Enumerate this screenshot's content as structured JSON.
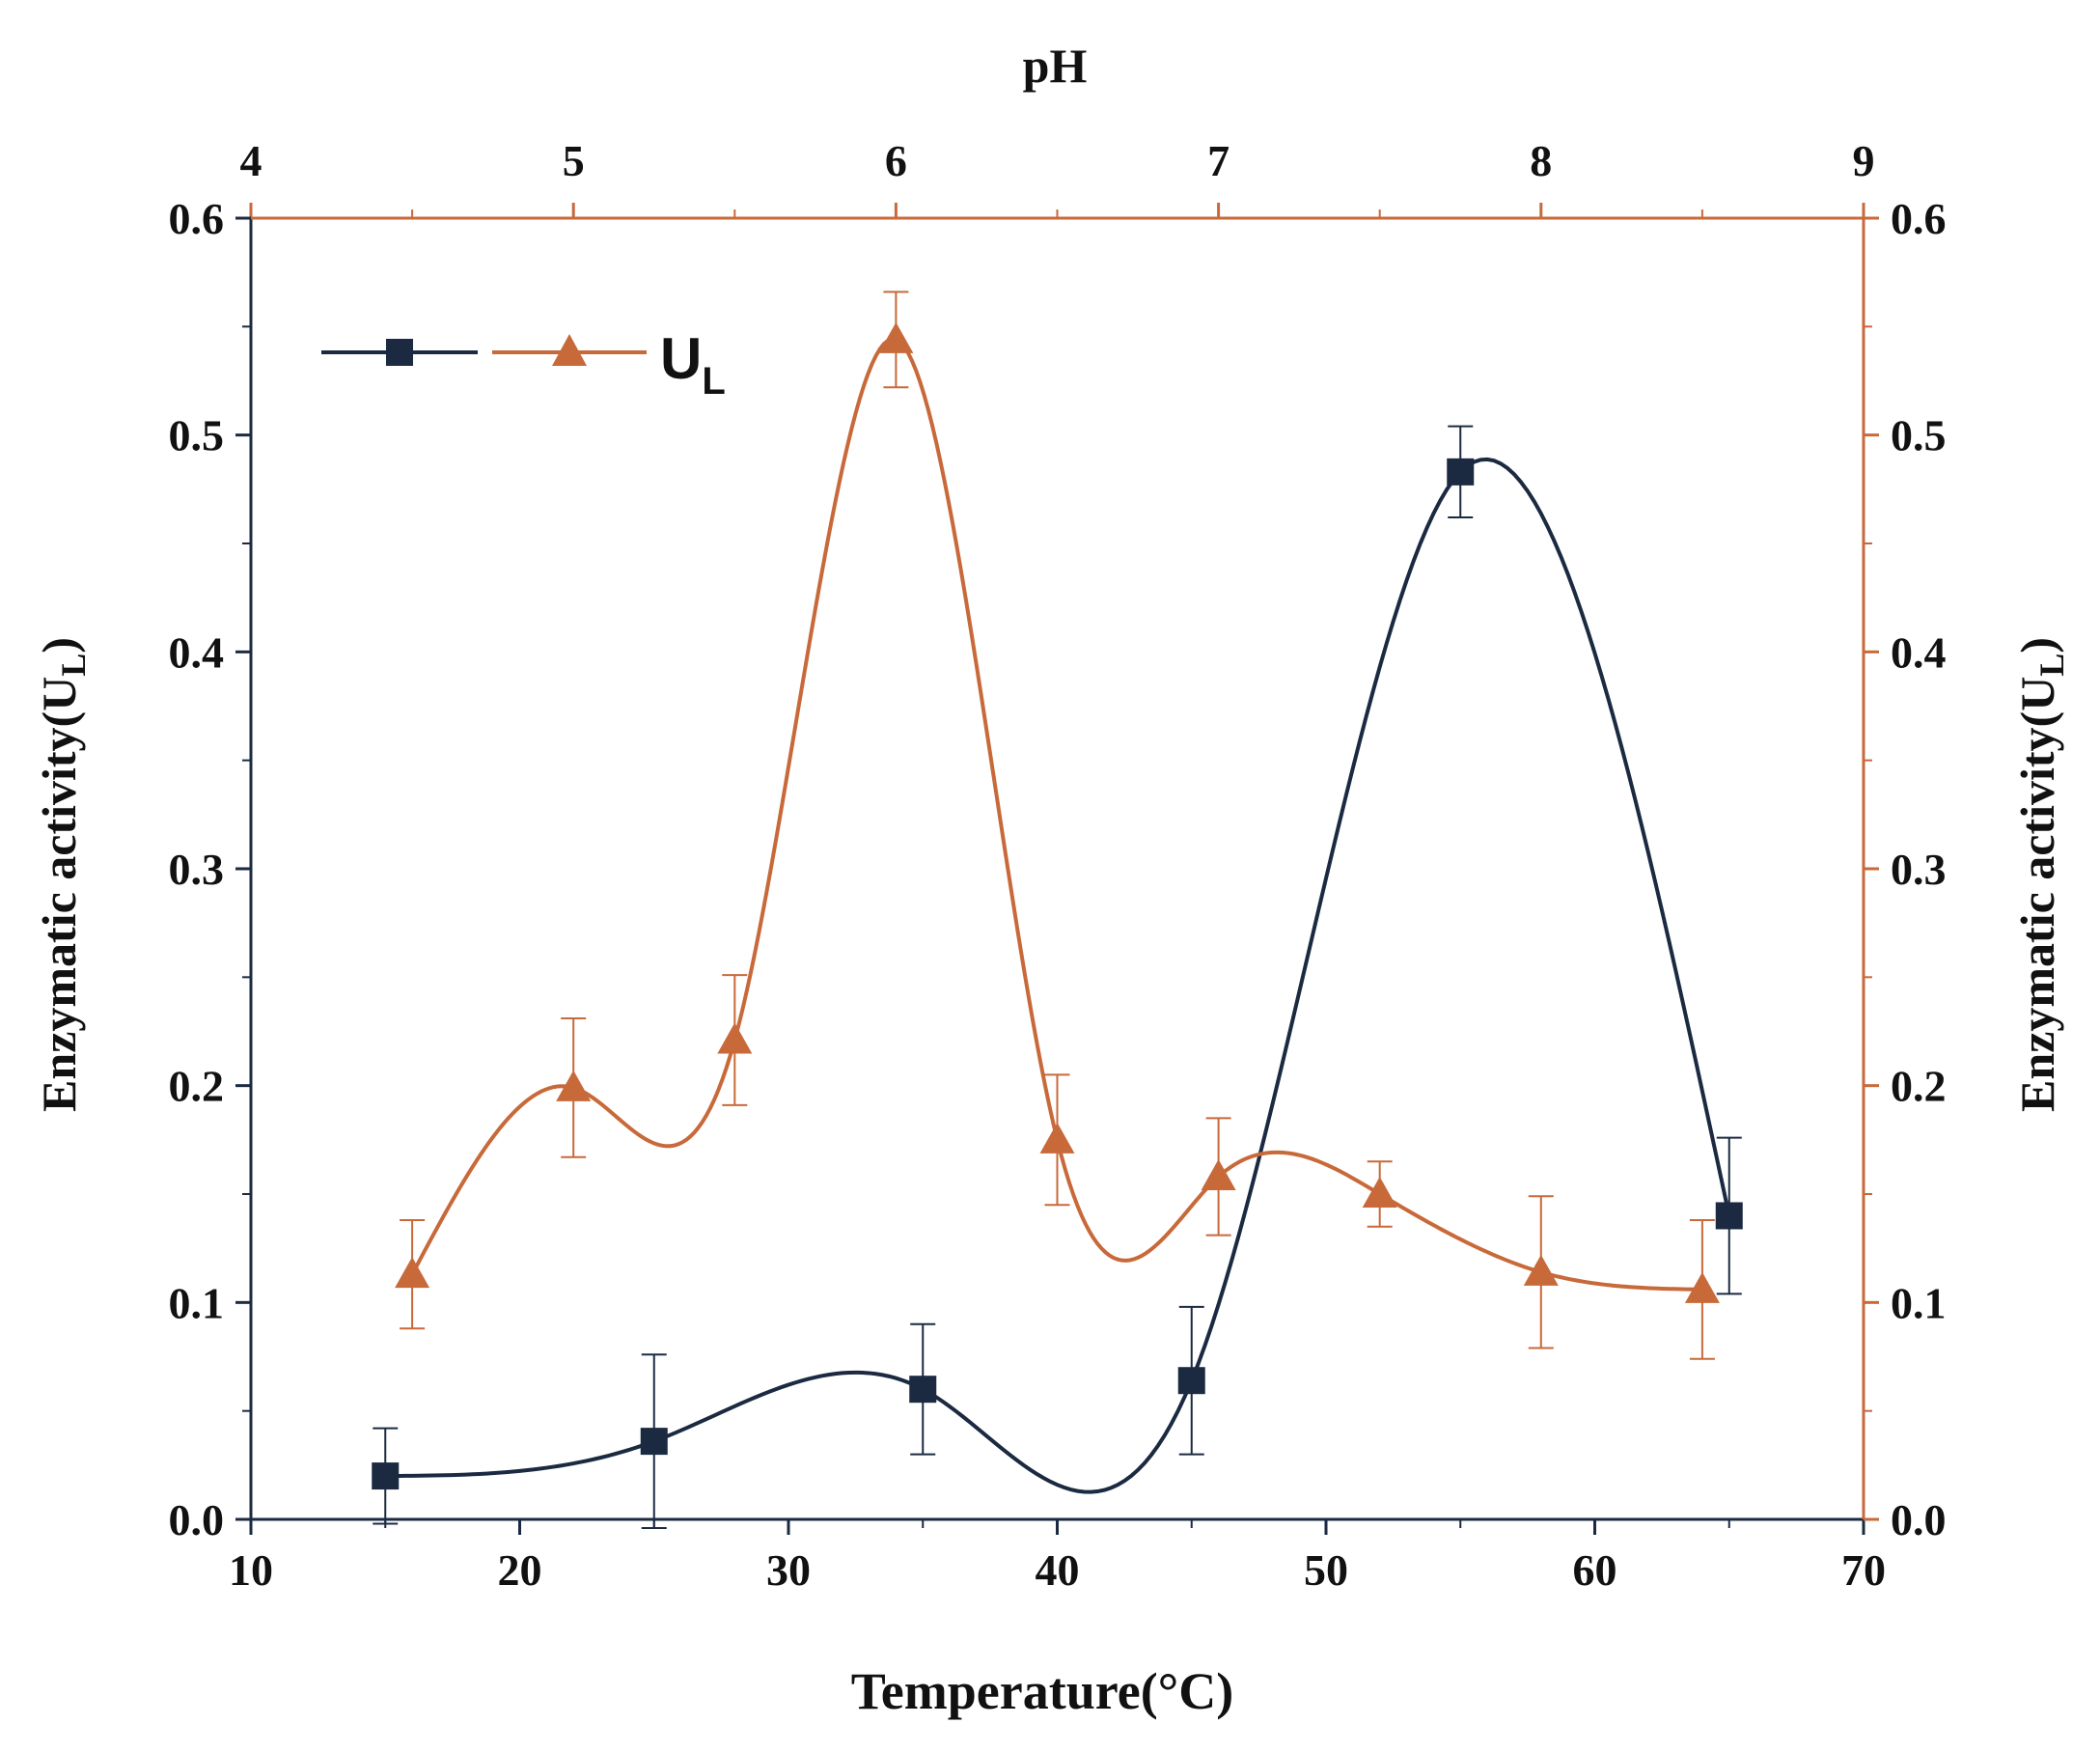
{
  "chart_data": {
    "type": "line",
    "title": "",
    "xlabel": "Temperature(°C)",
    "x2label": "pH",
    "ylabel": "Enzymatic  activity(U",
    "ylabel_sub": "L",
    "ylabel_close": ")",
    "y2label": "Enzymatic  activity(U",
    "y2label_sub": "L",
    "y2label_close": ")",
    "xlim": [
      10,
      70
    ],
    "x2lim": [
      4,
      9
    ],
    "ylim": [
      0.0,
      0.6
    ],
    "y2lim": [
      0.0,
      0.6
    ],
    "x_ticks": [
      "10",
      "20",
      "30",
      "40",
      "50",
      "60",
      "70"
    ],
    "x2_ticks": [
      "4",
      "5",
      "6",
      "7",
      "8",
      "9"
    ],
    "y_ticks": [
      "0.0",
      "0.1",
      "0.2",
      "0.3",
      "0.4",
      "0.5",
      "0.6"
    ],
    "y2_ticks": [
      "0.0",
      "0.1",
      "0.2",
      "0.3",
      "0.4",
      "0.5",
      "0.6"
    ],
    "legend": {
      "label": "U",
      "label_sub": "L",
      "position": "top-left"
    },
    "colors": {
      "temperature": "#1b2a41",
      "ph": "#c8693a"
    },
    "series": [
      {
        "name": "Temperature",
        "axis": "bottom-left",
        "marker": "square",
        "x": [
          15,
          25,
          35,
          45,
          55,
          65
        ],
        "y": [
          0.02,
          0.036,
          0.06,
          0.064,
          0.483,
          0.14
        ],
        "err": [
          0.022,
          0.04,
          0.03,
          0.034,
          0.021,
          0.036
        ]
      },
      {
        "name": "pH",
        "axis": "top-right",
        "marker": "triangle",
        "x": [
          4.5,
          5.0,
          5.5,
          6.0,
          6.5,
          7.0,
          7.5,
          8.0,
          8.5
        ],
        "y": [
          0.113,
          0.199,
          0.221,
          0.544,
          0.175,
          0.158,
          0.15,
          0.114,
          0.106
        ],
        "err": [
          0.025,
          0.032,
          0.03,
          0.022,
          0.03,
          0.027,
          0.015,
          0.035,
          0.032
        ]
      }
    ]
  }
}
